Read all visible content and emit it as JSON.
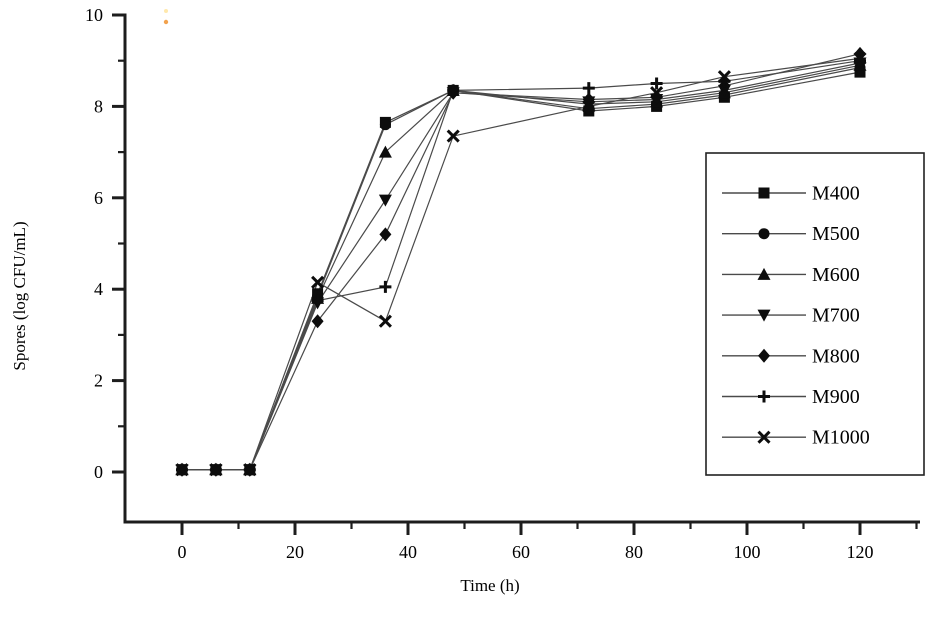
{
  "chart_data": {
    "type": "line",
    "title": "",
    "xlabel": "Time (h)",
    "ylabel": "Spores (log CFU/mL)",
    "x": [
      0,
      6,
      12,
      24,
      36,
      48,
      72,
      84,
      96,
      120
    ],
    "x_ticks": [
      0,
      20,
      40,
      60,
      80,
      100,
      120
    ],
    "x_minor_ticks": [
      10,
      30,
      50,
      70,
      90,
      110,
      130
    ],
    "y_ticks": [
      0,
      2,
      4,
      6,
      8,
      10
    ],
    "y_minor_ticks": [
      1,
      3,
      5,
      7,
      9
    ],
    "xlim": [
      -10,
      131
    ],
    "ylim": [
      -1.1,
      10
    ],
    "grid": false,
    "legend_position": "right-inside-box",
    "marker_color": "#0d0d0d",
    "line_color": "#4a4a4a",
    "axis_color": "#1d1d1d",
    "series": [
      {
        "name": "M400",
        "marker": "square",
        "values": [
          0.05,
          0.05,
          0.05,
          3.9,
          7.65,
          8.35,
          7.9,
          8.0,
          8.2,
          8.75
        ]
      },
      {
        "name": "M500",
        "marker": "circle",
        "values": [
          0.05,
          0.05,
          0.05,
          3.85,
          7.6,
          8.35,
          7.95,
          8.05,
          8.25,
          8.85
        ]
      },
      {
        "name": "M600",
        "marker": "triangle-up",
        "values": [
          0.05,
          0.05,
          0.05,
          3.8,
          7.0,
          8.35,
          8.05,
          8.1,
          8.3,
          8.9
        ]
      },
      {
        "name": "M700",
        "marker": "triangle-down",
        "values": [
          0.05,
          0.05,
          0.05,
          3.7,
          5.95,
          8.3,
          8.1,
          8.15,
          8.35,
          8.95
        ]
      },
      {
        "name": "M800",
        "marker": "diamond",
        "values": [
          0.05,
          0.05,
          0.05,
          3.3,
          5.2,
          8.3,
          8.15,
          8.2,
          8.45,
          9.15
        ]
      },
      {
        "name": "M900",
        "marker": "plus",
        "values": [
          0.05,
          0.05,
          0.05,
          3.75,
          4.05,
          8.35,
          8.4,
          8.5,
          8.55,
          9.0
        ]
      },
      {
        "name": "M1000",
        "marker": "x",
        "values": [
          0.05,
          0.05,
          0.05,
          4.15,
          3.3,
          7.35,
          8.0,
          8.3,
          8.65,
          9.05
        ]
      }
    ]
  }
}
